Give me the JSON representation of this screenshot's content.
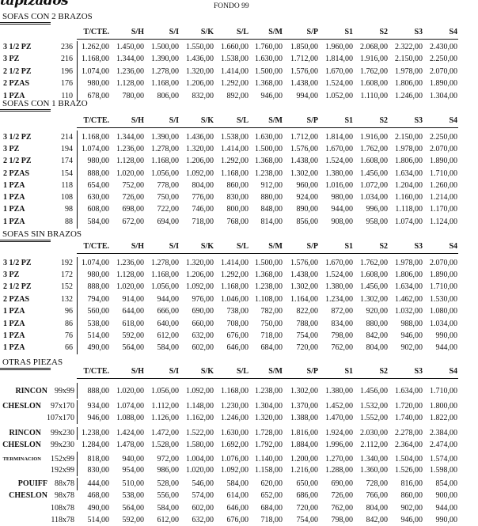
{
  "header": {
    "brand": "tapizados",
    "title": "FONDO 99"
  },
  "columns": [
    "T/CTE.",
    "S/H",
    "S/I",
    "S/K",
    "S/L",
    "S/M",
    "S/P",
    "S1",
    "S2",
    "S3",
    "S4"
  ],
  "sections": [
    {
      "title": "SOFAS CON 2 BRAZOS",
      "rows": [
        {
          "label": "3 1/2 PZ",
          "code": "236",
          "values": [
            "1.262,00",
            "1.450,00",
            "1.500,00",
            "1.550,00",
            "1.660,00",
            "1.760,00",
            "1.850,00",
            "1.960,00",
            "2.068,00",
            "2.322,00",
            "2.430,00"
          ]
        },
        {
          "label": "3 PZ",
          "code": "216",
          "values": [
            "1.168,00",
            "1.344,00",
            "1.390,00",
            "1.436,00",
            "1.538,00",
            "1.630,00",
            "1.712,00",
            "1.814,00",
            "1.916,00",
            "2.150,00",
            "2.250,00"
          ]
        },
        {
          "label": "2 1/2 PZ",
          "code": "196",
          "values": [
            "1.074,00",
            "1.236,00",
            "1.278,00",
            "1.320,00",
            "1.414,00",
            "1.500,00",
            "1.576,00",
            "1.670,00",
            "1.762,00",
            "1.978,00",
            "2.070,00"
          ]
        },
        {
          "label": "2 PZAS",
          "code": "176",
          "values": [
            "980,00",
            "1.128,00",
            "1.168,00",
            "1.206,00",
            "1.292,00",
            "1.368,00",
            "1.438,00",
            "1.524,00",
            "1.608,00",
            "1.806,00",
            "1.890,00"
          ]
        },
        {
          "label": "1 PZA",
          "code": "110",
          "values": [
            "678,00",
            "780,00",
            "806,00",
            "832,00",
            "892,00",
            "946,00",
            "994,00",
            "1.052,00",
            "1.110,00",
            "1.246,00",
            "1.304,00"
          ]
        }
      ]
    },
    {
      "title": "SOFAS CON 1 BRAZO",
      "rows": [
        {
          "label": "3 1/2 PZ",
          "code": "214",
          "values": [
            "1.168,00",
            "1.344,00",
            "1.390,00",
            "1.436,00",
            "1.538,00",
            "1.630,00",
            "1.712,00",
            "1.814,00",
            "1.916,00",
            "2.150,00",
            "2.250,00"
          ]
        },
        {
          "label": "3 PZ",
          "code": "194",
          "values": [
            "1.074,00",
            "1.236,00",
            "1.278,00",
            "1.320,00",
            "1.414,00",
            "1.500,00",
            "1.576,00",
            "1.670,00",
            "1.762,00",
            "1.978,00",
            "2.070,00"
          ]
        },
        {
          "label": "2 1/2 PZ",
          "code": "174",
          "values": [
            "980,00",
            "1.128,00",
            "1.168,00",
            "1.206,00",
            "1.292,00",
            "1.368,00",
            "1.438,00",
            "1.524,00",
            "1.608,00",
            "1.806,00",
            "1.890,00"
          ]
        },
        {
          "label": "2 PZAS",
          "code": "154",
          "values": [
            "888,00",
            "1.020,00",
            "1.056,00",
            "1.092,00",
            "1.168,00",
            "1.238,00",
            "1.302,00",
            "1.380,00",
            "1.456,00",
            "1.634,00",
            "1.710,00"
          ]
        },
        {
          "label": "1 PZA",
          "code": "118",
          "values": [
            "654,00",
            "752,00",
            "778,00",
            "804,00",
            "860,00",
            "912,00",
            "960,00",
            "1.016,00",
            "1.072,00",
            "1.204,00",
            "1.260,00"
          ]
        },
        {
          "label": "1 PZA",
          "code": "108",
          "values": [
            "630,00",
            "726,00",
            "750,00",
            "776,00",
            "830,00",
            "880,00",
            "924,00",
            "980,00",
            "1.034,00",
            "1.160,00",
            "1.214,00"
          ]
        },
        {
          "label": "1 PZA",
          "code": "98",
          "values": [
            "608,00",
            "698,00",
            "722,00",
            "746,00",
            "800,00",
            "848,00",
            "890,00",
            "944,00",
            "996,00",
            "1.118,00",
            "1.170,00"
          ]
        },
        {
          "label": "1 PZA",
          "code": "88",
          "values": [
            "584,00",
            "672,00",
            "694,00",
            "718,00",
            "768,00",
            "814,00",
            "856,00",
            "908,00",
            "958,00",
            "1.074,00",
            "1.124,00"
          ]
        }
      ]
    },
    {
      "title": "SOFAS SIN BRAZOS",
      "rows": [
        {
          "label": "3 1/2 PZ",
          "code": "192",
          "values": [
            "1.074,00",
            "1.236,00",
            "1.278,00",
            "1.320,00",
            "1.414,00",
            "1.500,00",
            "1.576,00",
            "1.670,00",
            "1.762,00",
            "1.978,00",
            "2.070,00"
          ]
        },
        {
          "label": "3 PZ",
          "code": "172",
          "values": [
            "980,00",
            "1.128,00",
            "1.168,00",
            "1.206,00",
            "1.292,00",
            "1.368,00",
            "1.438,00",
            "1.524,00",
            "1.608,00",
            "1.806,00",
            "1.890,00"
          ]
        },
        {
          "label": "2 1/2 PZ",
          "code": "152",
          "values": [
            "888,00",
            "1.020,00",
            "1.056,00",
            "1.092,00",
            "1.168,00",
            "1.238,00",
            "1.302,00",
            "1.380,00",
            "1.456,00",
            "1.634,00",
            "1.710,00"
          ]
        },
        {
          "label": "2 PZAS",
          "code": "132",
          "values": [
            "794,00",
            "914,00",
            "944,00",
            "976,00",
            "1.046,00",
            "1.108,00",
            "1.164,00",
            "1.234,00",
            "1.302,00",
            "1.462,00",
            "1.530,00"
          ]
        },
        {
          "label": "1 PZA",
          "code": "96",
          "values": [
            "560,00",
            "644,00",
            "666,00",
            "690,00",
            "738,00",
            "782,00",
            "822,00",
            "872,00",
            "920,00",
            "1.032,00",
            "1.080,00"
          ]
        },
        {
          "label": "1 PZA",
          "code": "86",
          "values": [
            "538,00",
            "618,00",
            "640,00",
            "660,00",
            "708,00",
            "750,00",
            "788,00",
            "834,00",
            "880,00",
            "988,00",
            "1.034,00"
          ]
        },
        {
          "label": "1 PZA",
          "code": "76",
          "values": [
            "514,00",
            "592,00",
            "612,00",
            "632,00",
            "676,00",
            "718,00",
            "754,00",
            "798,00",
            "842,00",
            "946,00",
            "990,00"
          ]
        },
        {
          "label": "1 PZA",
          "code": "66",
          "values": [
            "490,00",
            "564,00",
            "584,00",
            "602,00",
            "646,00",
            "684,00",
            "720,00",
            "762,00",
            "804,00",
            "902,00",
            "944,00"
          ]
        }
      ]
    },
    {
      "title": "OTRAS PIEZAS",
      "rows": [
        {
          "label": "RINCON",
          "code": "99x99",
          "values": [
            "888,00",
            "1.020,00",
            "1.056,00",
            "1.092,00",
            "1.168,00",
            "1.238,00",
            "1.302,00",
            "1.380,00",
            "1.456,00",
            "1.634,00",
            "1.710,00"
          ]
        },
        {
          "label": "CHESLON",
          "code": "97x170",
          "values": [
            "934,00",
            "1.074,00",
            "1.112,00",
            "1.148,00",
            "1.230,00",
            "1.304,00",
            "1.370,00",
            "1.452,00",
            "1.532,00",
            "1.720,00",
            "1.800,00"
          ]
        },
        {
          "label": "",
          "code": "107x170",
          "values": [
            "946,00",
            "1.088,00",
            "1.126,00",
            "1.162,00",
            "1.246,00",
            "1.320,00",
            "1.388,00",
            "1.470,00",
            "1.552,00",
            "1.740,00",
            "1.822,00"
          ]
        },
        {
          "label": "RINCON",
          "code": "99x230",
          "values": [
            "1.238,00",
            "1.424,00",
            "1.472,00",
            "1.522,00",
            "1.630,00",
            "1.728,00",
            "1.816,00",
            "1.924,00",
            "2.030,00",
            "2.278,00",
            "2.384,00"
          ]
        },
        {
          "label": "CHESLON",
          "code": "99x230",
          "values": [
            "1.284,00",
            "1.478,00",
            "1.528,00",
            "1.580,00",
            "1.692,00",
            "1.792,00",
            "1.884,00",
            "1.996,00",
            "2.112,00",
            "2.364,00",
            "2.474,00"
          ]
        },
        {
          "label": "TERMINACION",
          "code": "152x99",
          "values": [
            "818,00",
            "940,00",
            "972,00",
            "1.004,00",
            "1.076,00",
            "1.140,00",
            "1.200,00",
            "1.270,00",
            "1.340,00",
            "1.504,00",
            "1.574,00"
          ]
        },
        {
          "label": "",
          "code": "192x99",
          "values": [
            "830,00",
            "954,00",
            "986,00",
            "1.020,00",
            "1.092,00",
            "1.158,00",
            "1.216,00",
            "1.288,00",
            "1.360,00",
            "1.526,00",
            "1.598,00"
          ]
        },
        {
          "label": "POUIFF",
          "code": "88x78",
          "values": [
            "444,00",
            "510,00",
            "528,00",
            "546,00",
            "584,00",
            "620,00",
            "650,00",
            "690,00",
            "728,00",
            "816,00",
            "854,00"
          ]
        },
        {
          "label": "CHESLON",
          "code": "98x78",
          "values": [
            "468,00",
            "538,00",
            "556,00",
            "574,00",
            "614,00",
            "652,00",
            "686,00",
            "726,00",
            "766,00",
            "860,00",
            "900,00"
          ]
        },
        {
          "label": "",
          "code": "108x78",
          "values": [
            "490,00",
            "564,00",
            "584,00",
            "602,00",
            "646,00",
            "684,00",
            "720,00",
            "762,00",
            "804,00",
            "902,00",
            "944,00"
          ]
        },
        {
          "label": "",
          "code": "118x78",
          "values": [
            "514,00",
            "592,00",
            "612,00",
            "632,00",
            "676,00",
            "718,00",
            "754,00",
            "798,00",
            "842,00",
            "946,00",
            "990,00"
          ]
        }
      ]
    }
  ]
}
